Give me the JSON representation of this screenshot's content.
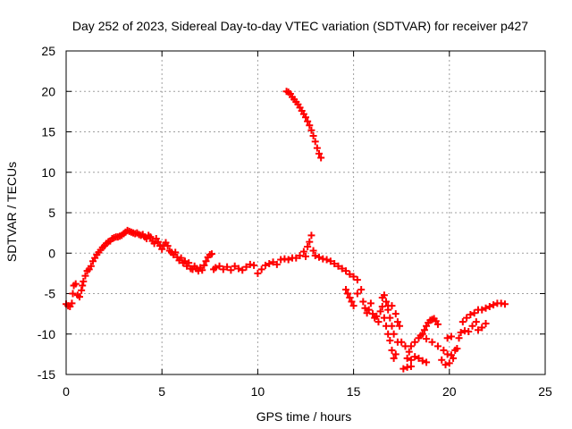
{
  "chart_data": {
    "type": "scatter",
    "title": "Day 252 of 2023, Sidereal Day-to-day VTEC variation (SDTVAR) for receiver p427",
    "xlabel": "GPS time / hours",
    "ylabel": "SDTVAR / TECUs",
    "xlim": [
      0,
      25
    ],
    "ylim": [
      -15,
      25
    ],
    "xticks": [
      0,
      5,
      10,
      15,
      20,
      25
    ],
    "yticks": [
      -15,
      -10,
      -5,
      0,
      5,
      10,
      15,
      20,
      25
    ],
    "grid": true,
    "marker": "+",
    "color": "#ff0000",
    "series": [
      {
        "name": "main",
        "points": [
          [
            0.0,
            -6.3
          ],
          [
            0.1,
            -6.5
          ],
          [
            0.2,
            -6.6
          ],
          [
            0.3,
            -6.2
          ],
          [
            0.35,
            -5.0
          ],
          [
            0.4,
            -4.0
          ],
          [
            0.5,
            -3.8
          ],
          [
            0.6,
            -5.2
          ],
          [
            0.7,
            -5.4
          ],
          [
            0.8,
            -4.6
          ],
          [
            0.85,
            -4.0
          ],
          [
            0.9,
            -3.5
          ],
          [
            1.0,
            -2.8
          ],
          [
            1.1,
            -2.2
          ],
          [
            1.2,
            -2.0
          ],
          [
            1.3,
            -1.6
          ],
          [
            1.4,
            -1.0
          ],
          [
            1.5,
            -0.6
          ],
          [
            1.6,
            -0.2
          ],
          [
            1.7,
            0.1
          ],
          [
            1.8,
            0.4
          ],
          [
            1.9,
            0.7
          ],
          [
            2.0,
            0.9
          ],
          [
            2.1,
            1.2
          ],
          [
            2.2,
            1.4
          ],
          [
            2.3,
            1.5
          ],
          [
            2.4,
            1.8
          ],
          [
            2.5,
            1.9
          ],
          [
            2.6,
            2.0
          ],
          [
            2.7,
            2.0
          ],
          [
            2.8,
            2.1
          ],
          [
            2.9,
            2.2
          ],
          [
            3.0,
            2.4
          ],
          [
            3.1,
            2.6
          ],
          [
            3.2,
            2.8
          ],
          [
            3.3,
            2.7
          ],
          [
            3.4,
            2.6
          ],
          [
            3.5,
            2.5
          ],
          [
            3.6,
            2.4
          ],
          [
            3.7,
            2.5
          ],
          [
            3.8,
            2.3
          ],
          [
            3.9,
            2.2
          ],
          [
            4.0,
            2.3
          ],
          [
            4.1,
            2.0
          ],
          [
            4.2,
            1.8
          ],
          [
            4.3,
            2.2
          ],
          [
            4.4,
            2.0
          ],
          [
            4.5,
            1.5
          ],
          [
            4.6,
            1.2
          ],
          [
            4.7,
            1.8
          ],
          [
            4.8,
            1.4
          ],
          [
            4.9,
            0.9
          ],
          [
            5.0,
            0.5
          ],
          [
            5.1,
            1.0
          ],
          [
            5.2,
            1.3
          ],
          [
            5.3,
            0.9
          ],
          [
            5.4,
            0.3
          ],
          [
            5.5,
            0.1
          ],
          [
            5.6,
            -0.2
          ],
          [
            5.7,
            0.1
          ],
          [
            5.8,
            -0.5
          ],
          [
            5.9,
            -0.9
          ],
          [
            6.0,
            -0.6
          ],
          [
            6.1,
            -1.2
          ],
          [
            6.2,
            -1.0
          ],
          [
            6.3,
            -1.6
          ],
          [
            6.4,
            -1.2
          ],
          [
            6.5,
            -1.9
          ],
          [
            6.6,
            -2.0
          ],
          [
            6.7,
            -1.6
          ],
          [
            6.8,
            -1.9
          ],
          [
            6.9,
            -2.2
          ],
          [
            7.0,
            -1.8
          ],
          [
            7.1,
            -2.1
          ],
          [
            7.2,
            -1.5
          ],
          [
            7.3,
            -1.0
          ],
          [
            7.4,
            -0.5
          ],
          [
            7.5,
            -0.2
          ],
          [
            7.6,
            -0.1
          ],
          [
            7.7,
            -2.0
          ],
          [
            7.8,
            -1.8
          ],
          [
            8.0,
            -1.6
          ],
          [
            8.2,
            -2.0
          ],
          [
            8.4,
            -1.7
          ],
          [
            8.6,
            -2.1
          ],
          [
            8.8,
            -1.6
          ],
          [
            9.0,
            -1.9
          ],
          [
            9.2,
            -2.1
          ],
          [
            9.4,
            -1.7
          ],
          [
            9.6,
            -1.4
          ],
          [
            9.8,
            -1.5
          ],
          [
            10.0,
            -2.5
          ],
          [
            10.2,
            -2.0
          ],
          [
            10.4,
            -1.5
          ],
          [
            10.6,
            -1.3
          ],
          [
            10.8,
            -1.1
          ],
          [
            11.0,
            -1.4
          ],
          [
            11.2,
            -0.8
          ],
          [
            11.4,
            -0.7
          ],
          [
            11.6,
            -0.8
          ],
          [
            11.8,
            -0.6
          ],
          [
            12.0,
            -0.6
          ],
          [
            12.2,
            -0.3
          ],
          [
            12.4,
            0.2
          ],
          [
            12.5,
            -0.4
          ],
          [
            12.6,
            0.8
          ],
          [
            12.7,
            1.4
          ],
          [
            12.8,
            2.2
          ],
          [
            12.9,
            0.3
          ],
          [
            13.0,
            -0.3
          ],
          [
            13.2,
            -0.5
          ],
          [
            13.4,
            -0.7
          ],
          [
            13.6,
            -0.8
          ],
          [
            13.8,
            -1.0
          ],
          [
            14.0,
            -1.3
          ],
          [
            14.2,
            -1.6
          ],
          [
            14.4,
            -1.9
          ],
          [
            14.6,
            -2.2
          ],
          [
            14.8,
            -2.6
          ],
          [
            15.0,
            -2.9
          ],
          [
            15.2,
            -3.3
          ],
          [
            14.6,
            -4.5
          ],
          [
            14.7,
            -5.0
          ],
          [
            14.8,
            -5.5
          ],
          [
            14.9,
            -6.0
          ],
          [
            15.0,
            -6.5
          ],
          [
            15.2,
            -5.0
          ],
          [
            15.4,
            -4.5
          ],
          [
            15.5,
            -6.0
          ],
          [
            15.6,
            -6.8
          ],
          [
            15.7,
            -7.4
          ],
          [
            15.8,
            -7.0
          ],
          [
            15.9,
            -6.2
          ],
          [
            16.0,
            -7.5
          ],
          [
            16.1,
            -8.0
          ],
          [
            16.2,
            -7.8
          ],
          [
            16.3,
            -8.5
          ],
          [
            16.4,
            -7.2
          ],
          [
            16.5,
            -6.6
          ],
          [
            16.6,
            -8.0
          ],
          [
            16.7,
            -9.0
          ],
          [
            16.8,
            -10.0
          ],
          [
            16.9,
            -10.8
          ],
          [
            17.0,
            -12.0
          ],
          [
            17.1,
            -13.0
          ],
          [
            17.2,
            -12.5
          ],
          [
            17.3,
            -11.0
          ],
          [
            17.4,
            -9.0
          ],
          [
            17.1,
            -10.0
          ],
          [
            17.0,
            -9.0
          ],
          [
            16.9,
            -8.0
          ],
          [
            16.8,
            -7.0
          ],
          [
            16.7,
            -6.0
          ],
          [
            16.6,
            -5.2
          ],
          [
            16.5,
            -5.5
          ],
          [
            16.8,
            -6.5
          ],
          [
            17.0,
            -6.5
          ],
          [
            17.2,
            -7.5
          ],
          [
            17.3,
            -8.5
          ]
        ]
      },
      {
        "name": "late",
        "points": [
          [
            17.5,
            -11.0
          ],
          [
            17.7,
            -11.5
          ],
          [
            17.9,
            -12.2
          ],
          [
            18.0,
            -11.5
          ],
          [
            18.2,
            -11.0
          ],
          [
            18.4,
            -10.5
          ],
          [
            18.6,
            -10.0
          ],
          [
            18.7,
            -9.5
          ],
          [
            18.8,
            -9.0
          ],
          [
            18.9,
            -8.6
          ],
          [
            19.0,
            -8.3
          ],
          [
            19.1,
            -8.2
          ],
          [
            19.2,
            -8.1
          ],
          [
            19.3,
            -8.4
          ],
          [
            19.4,
            -8.8
          ],
          [
            17.8,
            -13.0
          ],
          [
            18.0,
            -13.2
          ],
          [
            18.2,
            -12.8
          ],
          [
            18.4,
            -13.0
          ],
          [
            18.6,
            -13.3
          ],
          [
            18.8,
            -13.5
          ],
          [
            17.6,
            -14.3
          ],
          [
            17.8,
            -14.1
          ],
          [
            18.0,
            -14.0
          ],
          [
            18.5,
            -10.2
          ],
          [
            18.8,
            -10.6
          ],
          [
            19.1,
            -11.0
          ],
          [
            19.4,
            -11.5
          ],
          [
            19.7,
            -12.0
          ],
          [
            19.9,
            -12.5
          ],
          [
            20.1,
            -12.6
          ],
          [
            20.3,
            -12.0
          ],
          [
            19.6,
            -13.2
          ],
          [
            19.8,
            -13.8
          ],
          [
            20.0,
            -13.6
          ],
          [
            20.2,
            -13.0
          ],
          [
            20.4,
            -11.8
          ],
          [
            20.5,
            -10.5
          ],
          [
            20.6,
            -9.8
          ],
          [
            20.8,
            -9.6
          ],
          [
            21.0,
            -9.7
          ],
          [
            21.2,
            -9.0
          ],
          [
            21.4,
            -8.5
          ],
          [
            21.5,
            -9.5
          ],
          [
            21.7,
            -9.2
          ],
          [
            21.9,
            -8.7
          ],
          [
            20.7,
            -8.5
          ],
          [
            20.9,
            -8.0
          ],
          [
            21.1,
            -7.6
          ],
          [
            21.3,
            -7.4
          ],
          [
            21.5,
            -7.0
          ],
          [
            21.7,
            -7.0
          ],
          [
            21.9,
            -6.8
          ],
          [
            22.1,
            -6.6
          ],
          [
            22.3,
            -6.4
          ],
          [
            22.5,
            -6.2
          ],
          [
            22.7,
            -6.2
          ],
          [
            22.9,
            -6.3
          ],
          [
            19.9,
            -10.5
          ],
          [
            20.1,
            -10.3
          ]
        ]
      },
      {
        "name": "isolated",
        "points": [
          [
            11.5,
            20.0
          ],
          [
            11.6,
            19.9
          ],
          [
            11.7,
            19.7
          ],
          [
            11.8,
            19.3
          ],
          [
            11.9,
            19.0
          ],
          [
            12.0,
            18.7
          ],
          [
            12.1,
            18.4
          ],
          [
            12.2,
            18.0
          ],
          [
            12.3,
            17.6
          ],
          [
            12.4,
            17.2
          ],
          [
            12.5,
            16.8
          ],
          [
            12.6,
            16.3
          ],
          [
            12.7,
            15.8
          ],
          [
            12.8,
            15.2
          ],
          [
            12.9,
            14.5
          ],
          [
            13.0,
            13.8
          ],
          [
            13.1,
            13.0
          ],
          [
            13.2,
            12.3
          ],
          [
            13.3,
            11.8
          ]
        ]
      }
    ]
  }
}
